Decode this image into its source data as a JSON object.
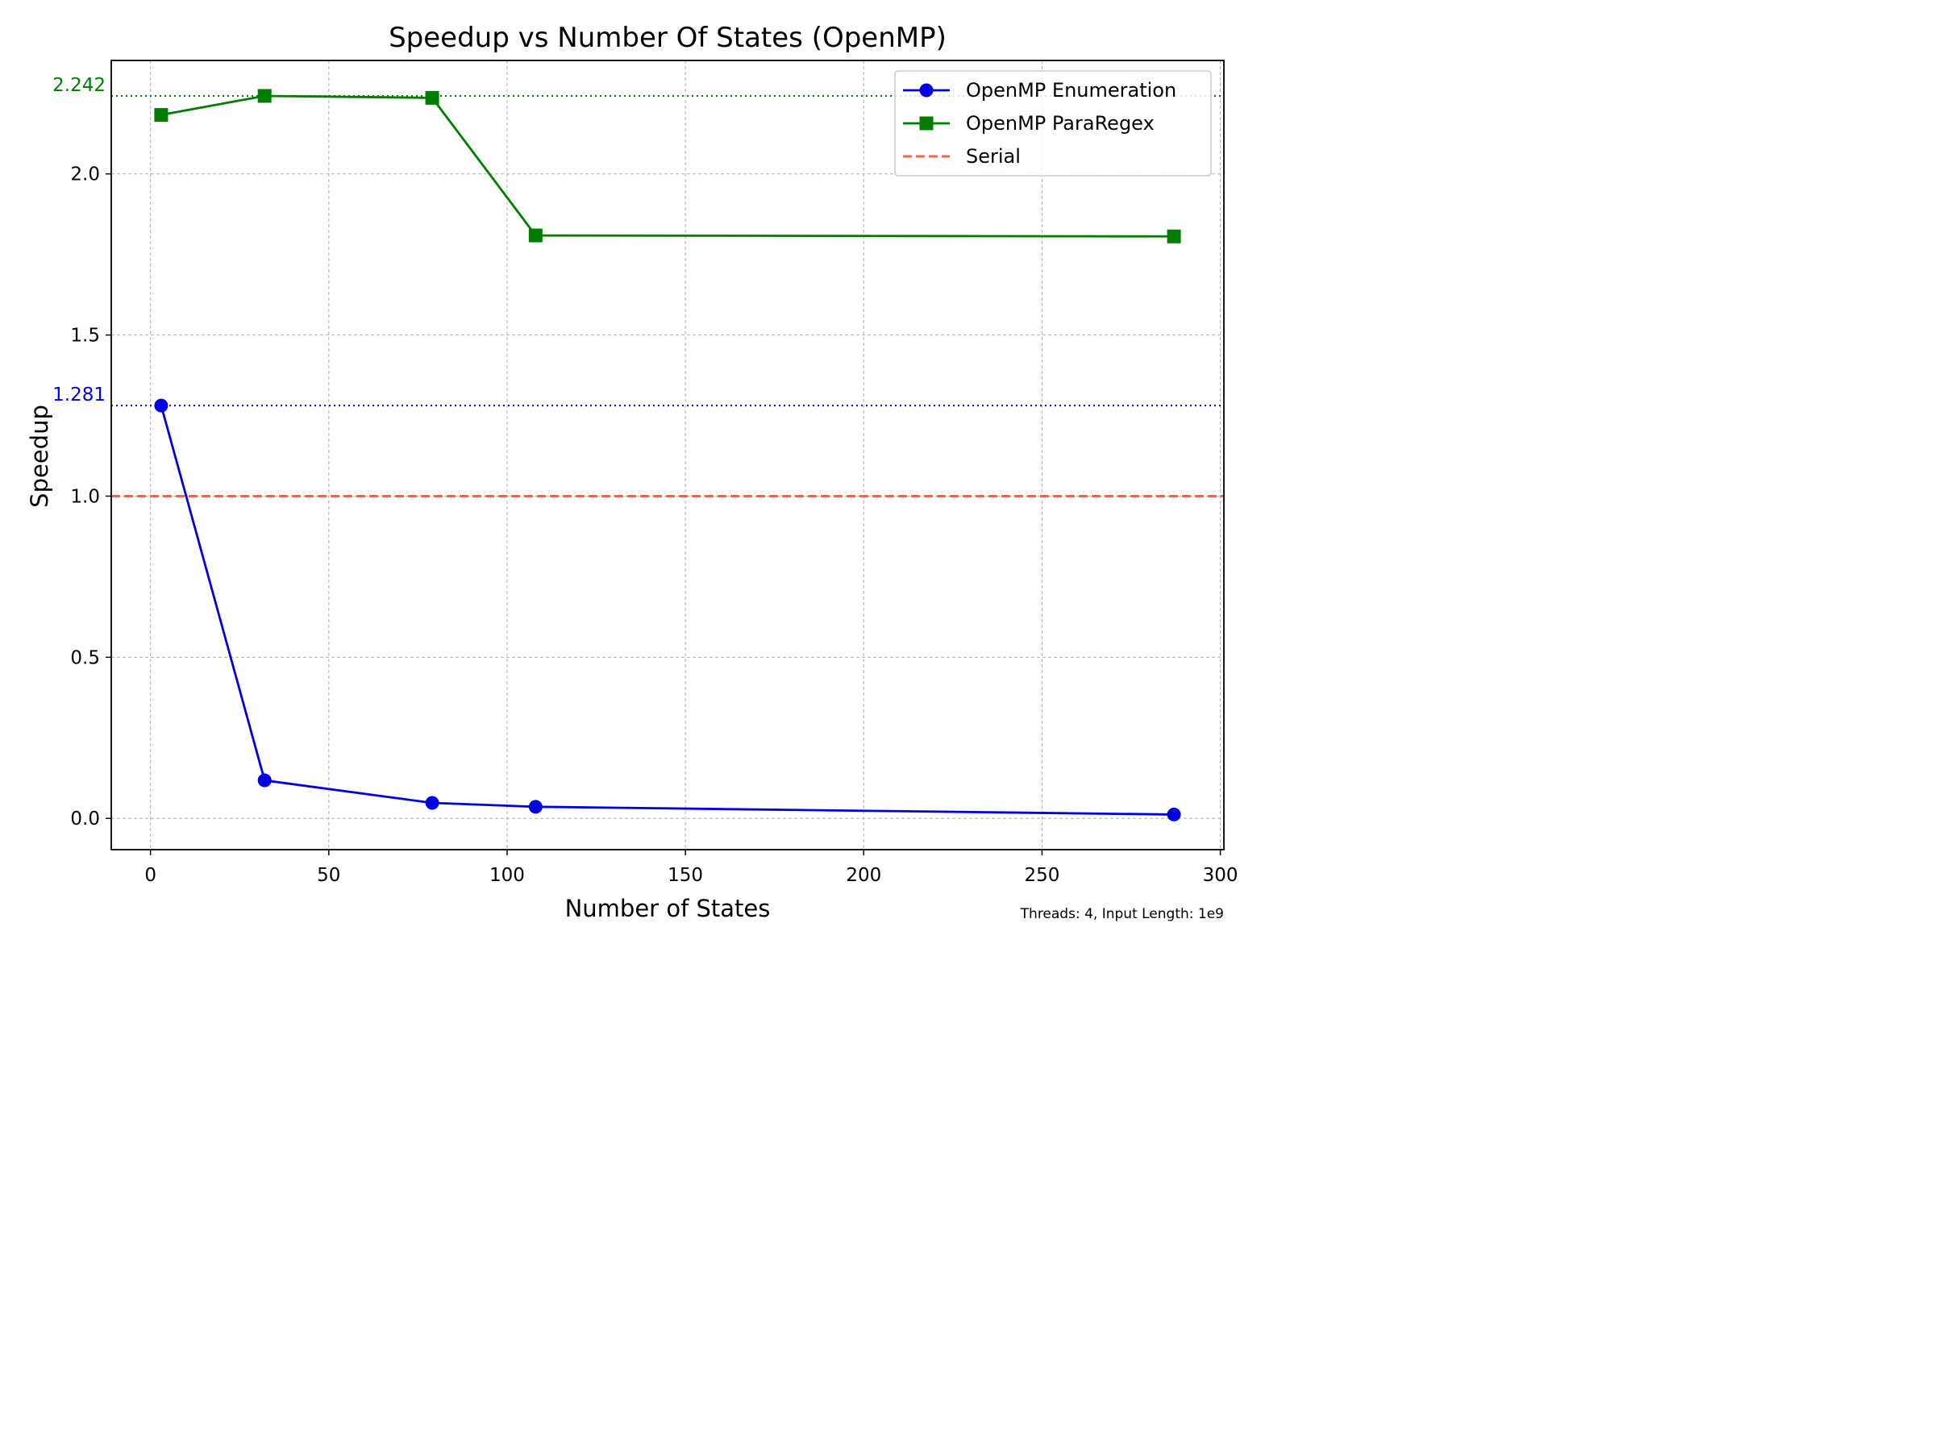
{
  "chart_data": {
    "type": "line",
    "title": "Speedup vs Number Of States (OpenMP)",
    "xlabel": "Number of States",
    "ylabel": "Speedup",
    "xlim": [
      -11,
      301
    ],
    "ylim": [
      -0.097,
      2.352
    ],
    "x_ticks": [
      0,
      50,
      100,
      150,
      200,
      250,
      300
    ],
    "y_ticks": [
      0.0,
      0.5,
      1.0,
      1.5,
      2.0
    ],
    "grid": true,
    "legend_position": "top-right",
    "x": [
      3,
      32,
      79,
      108,
      287
    ],
    "series": [
      {
        "name": "OpenMP Enumeration",
        "marker": "circle",
        "color": "#0000e0",
        "values": [
          1.281,
          0.118,
          0.048,
          0.036,
          0.012
        ]
      },
      {
        "name": "OpenMP ParaRegex",
        "marker": "square",
        "color": "#007d00",
        "values": [
          2.183,
          2.242,
          2.236,
          1.809,
          1.806
        ]
      }
    ],
    "reference_lines": [
      {
        "name": "Serial",
        "value": 1.0,
        "style": "dashed",
        "color": "#f06450"
      }
    ],
    "max_lines": [
      {
        "value": 2.242,
        "label": "2.242",
        "color": "#007d00"
      },
      {
        "value": 1.281,
        "label": "1.281",
        "color": "#0000e0"
      }
    ],
    "annotation": "Threads: 4, Input Length: 1e9"
  }
}
